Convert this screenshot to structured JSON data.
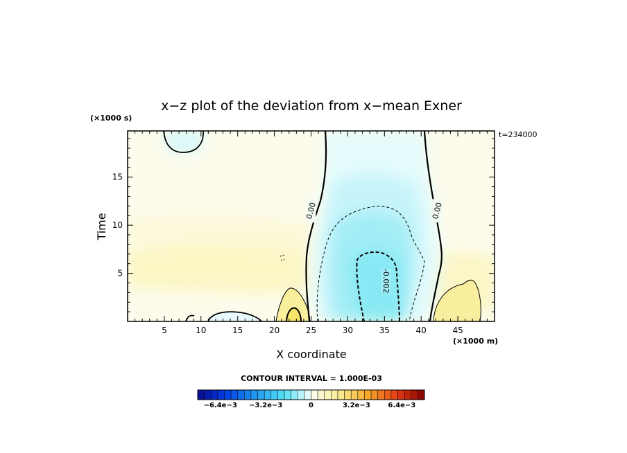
{
  "chart_data": {
    "type": "heatmap",
    "title": "x−z plot of the deviation from x−mean Exner",
    "xlabel": "X coordinate",
    "ylabel": "Time",
    "x_unit": "(×1000 m)",
    "y_unit": "(×1000 s)",
    "time_stamp": "t=234000",
    "xlim": [
      0,
      50
    ],
    "ylim": [
      0,
      19.8
    ],
    "xticks": [
      "5",
      "10",
      "15",
      "20",
      "25",
      "30",
      "35",
      "40",
      "45"
    ],
    "yticks": [
      "5",
      "10",
      "15"
    ],
    "contour_interval": "CONTOUR INTERVAL = 1.000E-03",
    "contour_labels": [
      {
        "text": "0.00",
        "x": 25.0,
        "y": 11.5
      },
      {
        "text": "0.00",
        "x": 42.2,
        "y": 11.5
      },
      {
        "text": "-0.002",
        "x": 35.2,
        "y": 4.2
      }
    ],
    "colorbar": {
      "range": [
        -0.008,
        0.008
      ],
      "steps": 34,
      "ticks": [
        "−6.4e−3",
        "−3.2e−3",
        "0",
        "3.2e−3",
        "6.4e−3"
      ],
      "tick_values": [
        -0.0064,
        -0.0032,
        0,
        0.0032,
        0.0064
      ]
    },
    "field_summary": [
      {
        "name": "negative core",
        "x": 33.5,
        "y": 4.0,
        "value": -0.0025
      },
      {
        "name": "negative plume",
        "x": 34.0,
        "y": 15.0,
        "value": -0.0008
      },
      {
        "name": "positive band",
        "x": 12.0,
        "y": 5.5,
        "value": 0.0005
      },
      {
        "name": "positive pocket",
        "x": 22.5,
        "y": 1.5,
        "value": 0.0012
      },
      {
        "name": "positive pocket right",
        "x": 46.5,
        "y": 2.0,
        "value": 0.0008
      }
    ]
  }
}
